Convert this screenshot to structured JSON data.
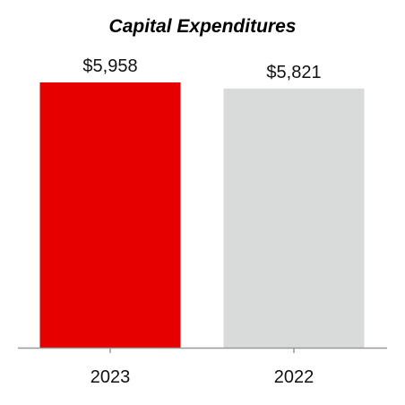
{
  "chart_data": {
    "type": "bar",
    "title": "Capital Expenditures",
    "categories": [
      "2023",
      "2022"
    ],
    "values": [
      5958,
      5821
    ],
    "value_labels": [
      "$5,958",
      "$5,821"
    ],
    "bar_colors": [
      "#e60000",
      "#d9dbdb"
    ],
    "axis_color": "#999999",
    "ylim": [
      0,
      5958
    ],
    "grid": false,
    "legend": "none",
    "xlabel": "",
    "ylabel": ""
  }
}
